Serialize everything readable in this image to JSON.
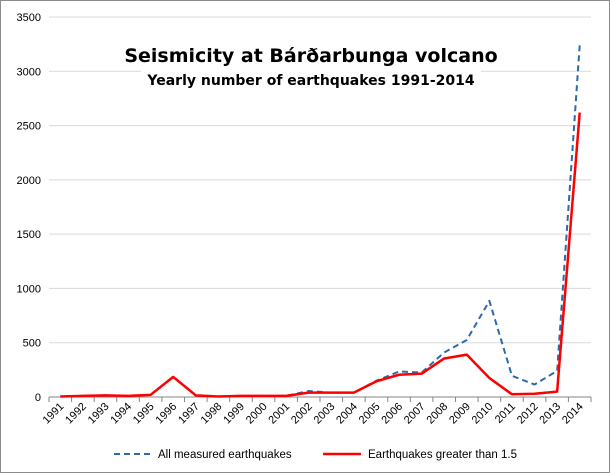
{
  "chart_data": {
    "type": "line",
    "title": "Seismicity at Bárðarbunga volcano",
    "subtitle": "Yearly number of earthquakes 1991-2014",
    "xlabel": "",
    "ylabel": "",
    "categories": [
      "1991",
      "1992",
      "1993",
      "1994",
      "1995",
      "1996",
      "1997",
      "1998",
      "1999",
      "2000",
      "2001",
      "2002",
      "2003",
      "2004",
      "2005",
      "2006",
      "2007",
      "2008",
      "2009",
      "2010",
      "2011",
      "2012",
      "2013",
      "2014"
    ],
    "ylim": [
      0,
      3500
    ],
    "yticks": [
      "0",
      "500",
      "1000",
      "1500",
      "2000",
      "2500",
      "3000",
      "3500"
    ],
    "grid": "horizontal",
    "legend_position": "bottom",
    "series": [
      {
        "name": "All measured earthquakes",
        "color": "#2e6aa9",
        "style": "dashed",
        "values": [
          5,
          10,
          15,
          10,
          20,
          185,
          15,
          5,
          10,
          10,
          10,
          55,
          40,
          40,
          150,
          235,
          225,
          410,
          525,
          885,
          195,
          115,
          240,
          3240
        ]
      },
      {
        "name": "Earthquakes greater than 1.5",
        "color": "#ff0000",
        "style": "solid",
        "values": [
          5,
          10,
          15,
          10,
          20,
          185,
          15,
          5,
          10,
          10,
          10,
          40,
          40,
          40,
          145,
          205,
          215,
          355,
          390,
          175,
          25,
          30,
          50,
          2620
        ]
      }
    ]
  }
}
